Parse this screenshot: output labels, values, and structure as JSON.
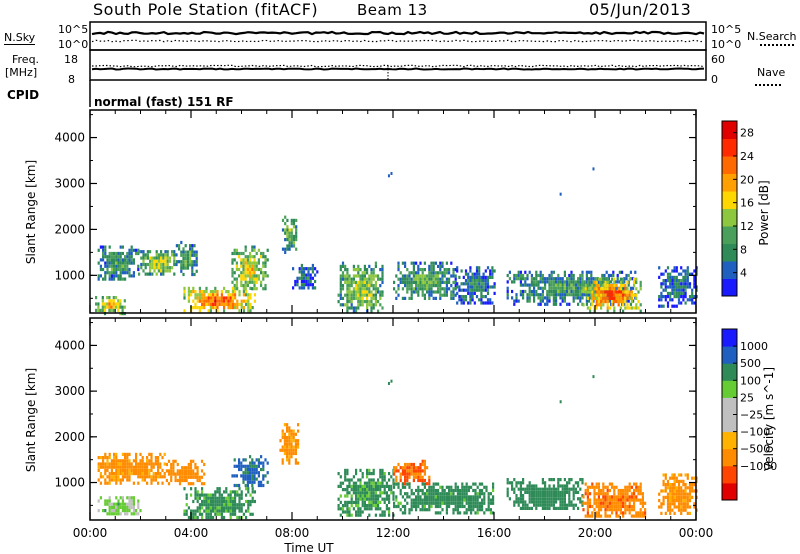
{
  "header": {
    "station": "South Pole Station (fitACF)",
    "beam": "Beam 13",
    "date": "05/Jun/2013"
  },
  "status_panel": {
    "nsky_label": "N.Sky",
    "nsky_ticks": [
      "10^5",
      "10^0"
    ],
    "nsearch_label": "N.Search",
    "nsearch_ticks": [
      "10^5",
      "10^0"
    ],
    "freq_label_top": "Freq.",
    "freq_label_unit": "[MHz]",
    "freq_ticks": [
      "18",
      "8"
    ],
    "nave_label": "Nave",
    "nave_ticks": [
      "60",
      "0"
    ],
    "cpid_label": "CPID",
    "cpid_value": "normal (fast) 151 RF"
  },
  "colors": {
    "power_scale": [
      "#1a1aff",
      "#1f5fbf",
      "#2e8b57",
      "#4aa05a",
      "#8dc63f",
      "#ffd700",
      "#ff9f00",
      "#ff6a00",
      "#ff2a00",
      "#e00000"
    ],
    "velocity_scale": [
      "#e00000",
      "#ff4500",
      "#ff8c00",
      "#ffb300",
      "#c0c0c0",
      "#c0c0c0",
      "#66cc33",
      "#2e8b57",
      "#1f5fbf",
      "#1a1aff"
    ]
  },
  "chart_data": [
    {
      "type": "heatmap",
      "title": "",
      "xlabel": "",
      "ylabel": "Slant Range [km]",
      "x_ticks": [
        "00:00",
        "04:00",
        "08:00",
        "12:00",
        "16:00",
        "20:00",
        "00:00"
      ],
      "y_ticks": [
        "1000",
        "2000",
        "3000",
        "4000"
      ],
      "xlim_hours": [
        0,
        24
      ],
      "ylim_km": [
        180,
        4600
      ],
      "colorbar_label": "Power [dB]",
      "colorbar_ticks": [
        "4",
        "8",
        "12",
        "16",
        "20",
        "24",
        "28"
      ],
      "colorbar_range": [
        0,
        30
      ],
      "echo_regions": [
        {
          "t0": 0.3,
          "t1": 1.9,
          "r0": 900,
          "r1": 1650,
          "p": 9
        },
        {
          "t0": 1.9,
          "t1": 3.4,
          "r0": 1000,
          "r1": 1550,
          "p": 14
        },
        {
          "t0": 3.4,
          "t1": 4.2,
          "r0": 1050,
          "r1": 1750,
          "p": 10
        },
        {
          "t0": 0.2,
          "t1": 1.4,
          "r0": 200,
          "r1": 550,
          "p": 18
        },
        {
          "t0": 3.7,
          "t1": 6.5,
          "r0": 200,
          "r1": 750,
          "p": 22
        },
        {
          "t0": 5.6,
          "t1": 7.0,
          "r0": 700,
          "r1": 1650,
          "p": 16
        },
        {
          "t0": 7.6,
          "t1": 8.2,
          "r0": 1500,
          "r1": 2300,
          "p": 12
        },
        {
          "t0": 8.0,
          "t1": 9.0,
          "r0": 700,
          "r1": 1250,
          "p": 6
        },
        {
          "t0": 9.8,
          "t1": 11.6,
          "r0": 200,
          "r1": 1300,
          "p": 13
        },
        {
          "t0": 12.0,
          "t1": 14.5,
          "r0": 500,
          "r1": 1300,
          "p": 10
        },
        {
          "t0": 14.5,
          "t1": 16.0,
          "r0": 400,
          "r1": 1200,
          "p": 7
        },
        {
          "t0": 16.5,
          "t1": 21.6,
          "r0": 400,
          "r1": 1100,
          "p": 9
        },
        {
          "t0": 19.5,
          "t1": 21.8,
          "r0": 250,
          "r1": 950,
          "p": 22
        },
        {
          "t0": 22.5,
          "t1": 24.0,
          "r0": 300,
          "r1": 1200,
          "p": 6
        }
      ]
    },
    {
      "type": "heatmap",
      "title": "",
      "xlabel": "Time UT",
      "ylabel": "Slant Range [km]",
      "x_ticks": [
        "00:00",
        "04:00",
        "08:00",
        "12:00",
        "16:00",
        "20:00",
        "00:00"
      ],
      "y_ticks": [
        "1000",
        "2000",
        "3000",
        "4000"
      ],
      "xlim_hours": [
        0,
        24
      ],
      "ylim_km": [
        180,
        4600
      ],
      "colorbar_label": "Velocity [m s^-1]",
      "colorbar_ticks": [
        "1000",
        "500",
        "100",
        "25",
        "−25",
        "−100",
        "−500",
        "−1000"
      ],
      "echo_regions": [
        {
          "t0": 0.3,
          "t1": 3.0,
          "r0": 1000,
          "r1": 1650,
          "v": -150
        },
        {
          "t0": 3.0,
          "t1": 4.5,
          "r0": 1000,
          "r1": 1500,
          "v": -300
        },
        {
          "t0": 0.3,
          "t1": 2.0,
          "r0": 300,
          "r1": 700,
          "v": 50
        },
        {
          "t0": 3.7,
          "t1": 6.5,
          "r0": 250,
          "r1": 900,
          "v": 150
        },
        {
          "t0": 5.6,
          "t1": 7.0,
          "r0": 900,
          "r1": 1600,
          "v": 600
        },
        {
          "t0": 7.5,
          "t1": 8.2,
          "r0": 1400,
          "r1": 2300,
          "v": -150
        },
        {
          "t0": 9.8,
          "t1": 12.0,
          "r0": 300,
          "r1": 1300,
          "v": 150
        },
        {
          "t0": 12.0,
          "t1": 13.4,
          "r0": 1000,
          "r1": 1500,
          "v": -500
        },
        {
          "t0": 12.0,
          "t1": 16.0,
          "r0": 350,
          "r1": 1000,
          "v": 200
        },
        {
          "t0": 16.5,
          "t1": 19.5,
          "r0": 400,
          "r1": 1100,
          "v": 300
        },
        {
          "t0": 19.5,
          "t1": 22.0,
          "r0": 250,
          "r1": 1000,
          "v": -400
        },
        {
          "t0": 22.5,
          "t1": 24.0,
          "r0": 300,
          "r1": 1200,
          "v": -150
        }
      ],
      "scatter_echoes": [
        {
          "t": 11.9,
          "r": 3250
        },
        {
          "t": 19.9,
          "r": 3350
        },
        {
          "t": 18.6,
          "r": 2800
        },
        {
          "t": 11.8,
          "r": 3200
        }
      ]
    }
  ]
}
